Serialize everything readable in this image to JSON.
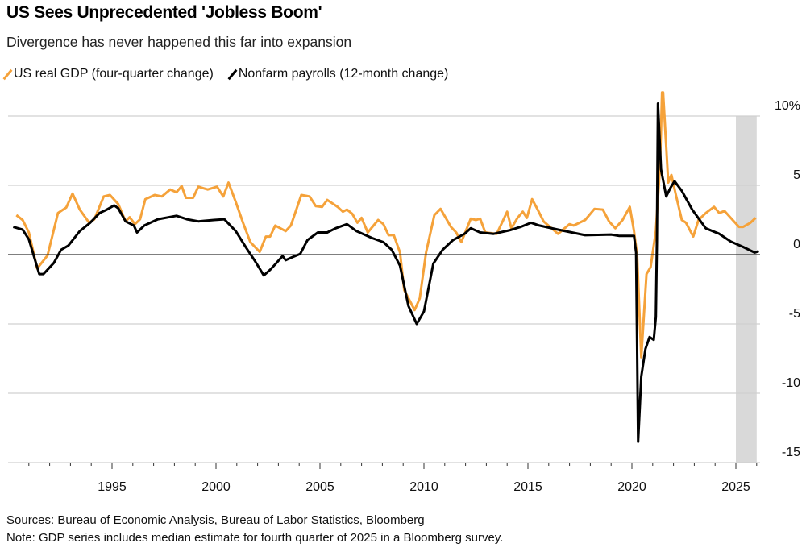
{
  "title": "US Sees Unprecedented 'Jobless Boom'",
  "subtitle": "Divergence has never happened this far into expansion",
  "footer": {
    "sources": "Sources: Bureau of Economic Analysis, Bureau of Labor Statistics, Bloomberg",
    "note": "Note: GDP series includes median estimate for fourth quarter of 2025 in a Bloomberg survey."
  },
  "chart_data": {
    "type": "line",
    "title": "US Sees Unprecedented 'Jobless Boom'",
    "xlabel": "",
    "ylabel": "",
    "xlim": [
      1990,
      2026.25
    ],
    "ylim": [
      -15,
      11
    ],
    "yticks": [
      {
        "v": 10,
        "label": "10%"
      },
      {
        "v": 5,
        "label": "5"
      },
      {
        "v": 0,
        "label": "0"
      },
      {
        "v": -5,
        "label": "-5"
      },
      {
        "v": -10,
        "label": "-10"
      },
      {
        "v": -15,
        "label": "-15"
      }
    ],
    "xticks": [
      {
        "v": 1995,
        "label": "1995"
      },
      {
        "v": 2000,
        "label": "2000"
      },
      {
        "v": 2005,
        "label": "2005"
      },
      {
        "v": 2010,
        "label": "2010"
      },
      {
        "v": 2015,
        "label": "2015"
      },
      {
        "v": 2020,
        "label": "2020"
      },
      {
        "v": 2025,
        "label": "2025"
      }
    ],
    "shaded_region": [
      2025,
      2026
    ],
    "grid": true,
    "legend_position": "top-left",
    "series": [
      {
        "name": "US real GDP (four-quarter change)",
        "color": "#f5a23a",
        "points": [
          [
            1990.4,
            2.85
          ],
          [
            1990.7,
            2.5
          ],
          [
            1991.0,
            1.6
          ],
          [
            1991.4,
            -1.0
          ],
          [
            1991.9,
            -0.05
          ],
          [
            1992.4,
            3.0
          ],
          [
            1992.8,
            3.4
          ],
          [
            1993.1,
            4.4
          ],
          [
            1993.45,
            3.25
          ],
          [
            1993.9,
            2.3
          ],
          [
            1994.15,
            2.55
          ],
          [
            1994.6,
            4.2
          ],
          [
            1994.9,
            4.3
          ],
          [
            1995.3,
            3.65
          ],
          [
            1995.65,
            2.4
          ],
          [
            1995.85,
            2.7
          ],
          [
            1996.1,
            2.2
          ],
          [
            1996.35,
            2.55
          ],
          [
            1996.6,
            4.0
          ],
          [
            1997.05,
            4.3
          ],
          [
            1997.4,
            4.2
          ],
          [
            1997.8,
            4.7
          ],
          [
            1998.1,
            4.5
          ],
          [
            1998.35,
            4.95
          ],
          [
            1998.55,
            4.1
          ],
          [
            1998.9,
            4.1
          ],
          [
            1999.15,
            4.9
          ],
          [
            1999.6,
            4.7
          ],
          [
            2000.05,
            4.9
          ],
          [
            2000.35,
            4.2
          ],
          [
            2000.6,
            5.2
          ],
          [
            2000.95,
            3.8
          ],
          [
            2001.3,
            2.3
          ],
          [
            2001.65,
            0.9
          ],
          [
            2002.1,
            0.2
          ],
          [
            2002.4,
            1.3
          ],
          [
            2002.6,
            1.3
          ],
          [
            2002.85,
            2.1
          ],
          [
            2003.35,
            1.7
          ],
          [
            2003.6,
            2.1
          ],
          [
            2004.1,
            4.3
          ],
          [
            2004.5,
            4.2
          ],
          [
            2004.8,
            3.5
          ],
          [
            2005.1,
            3.45
          ],
          [
            2005.35,
            3.95
          ],
          [
            2005.85,
            3.45
          ],
          [
            2006.1,
            3.1
          ],
          [
            2006.3,
            3.25
          ],
          [
            2006.55,
            2.95
          ],
          [
            2006.8,
            2.3
          ],
          [
            2007.0,
            2.65
          ],
          [
            2007.3,
            1.6
          ],
          [
            2007.8,
            2.5
          ],
          [
            2008.05,
            2.2
          ],
          [
            2008.3,
            1.4
          ],
          [
            2008.55,
            1.4
          ],
          [
            2008.85,
            0.15
          ],
          [
            2009.05,
            -2.55
          ],
          [
            2009.55,
            -4.0
          ],
          [
            2009.8,
            -3.15
          ],
          [
            2010.1,
            0.15
          ],
          [
            2010.5,
            2.85
          ],
          [
            2010.8,
            3.3
          ],
          [
            2011.3,
            2.0
          ],
          [
            2011.55,
            1.6
          ],
          [
            2011.8,
            0.9
          ],
          [
            2012.25,
            2.6
          ],
          [
            2012.5,
            2.5
          ],
          [
            2012.7,
            2.6
          ],
          [
            2012.95,
            1.6
          ],
          [
            2013.5,
            1.5
          ],
          [
            2014.0,
            3.1
          ],
          [
            2014.2,
            1.9
          ],
          [
            2014.5,
            2.65
          ],
          [
            2014.75,
            3.1
          ],
          [
            2014.95,
            2.65
          ],
          [
            2015.2,
            4.0
          ],
          [
            2015.45,
            3.3
          ],
          [
            2015.75,
            2.4
          ],
          [
            2016.45,
            1.5
          ],
          [
            2017.0,
            2.2
          ],
          [
            2017.2,
            2.1
          ],
          [
            2017.75,
            2.5
          ],
          [
            2018.2,
            3.3
          ],
          [
            2018.6,
            3.25
          ],
          [
            2018.9,
            2.4
          ],
          [
            2019.2,
            1.9
          ],
          [
            2019.55,
            2.5
          ],
          [
            2019.9,
            3.45
          ],
          [
            2020.1,
            1.7
          ],
          [
            2020.25,
            -0.05
          ],
          [
            2020.45,
            -7.4
          ],
          [
            2020.7,
            -1.4
          ],
          [
            2020.9,
            -0.9
          ],
          [
            2021.15,
            1.7
          ],
          [
            2021.35,
            6.3
          ],
          [
            2021.45,
            11.7
          ],
          [
            2021.5,
            11.7
          ],
          [
            2021.75,
            5.2
          ],
          [
            2021.9,
            5.75
          ],
          [
            2022.1,
            4.4
          ],
          [
            2022.4,
            2.5
          ],
          [
            2022.6,
            2.3
          ],
          [
            2022.95,
            1.3
          ],
          [
            2023.2,
            2.5
          ],
          [
            2023.55,
            3.0
          ],
          [
            2023.95,
            3.45
          ],
          [
            2024.2,
            3.0
          ],
          [
            2024.45,
            3.15
          ],
          [
            2024.75,
            2.65
          ],
          [
            2025.15,
            2.0
          ],
          [
            2025.35,
            2.0
          ],
          [
            2025.7,
            2.3
          ],
          [
            2025.95,
            2.65
          ]
        ]
      },
      {
        "name": "Nonfarm payrolls (12-month change)",
        "color": "#000000",
        "points": [
          [
            1990.25,
            2.0
          ],
          [
            1990.7,
            1.8
          ],
          [
            1991.0,
            1.1
          ],
          [
            1991.5,
            -1.4
          ],
          [
            1991.7,
            -1.4
          ],
          [
            1992.2,
            -0.6
          ],
          [
            1992.55,
            0.35
          ],
          [
            1992.9,
            0.65
          ],
          [
            1993.45,
            1.7
          ],
          [
            1993.95,
            2.3
          ],
          [
            1994.4,
            3.0
          ],
          [
            1994.75,
            3.25
          ],
          [
            1995.1,
            3.55
          ],
          [
            1995.3,
            3.35
          ],
          [
            1995.65,
            2.4
          ],
          [
            1996.05,
            2.1
          ],
          [
            1996.2,
            1.6
          ],
          [
            1996.55,
            2.1
          ],
          [
            1997.2,
            2.55
          ],
          [
            1998.1,
            2.8
          ],
          [
            1998.6,
            2.55
          ],
          [
            1999.15,
            2.4
          ],
          [
            1999.9,
            2.5
          ],
          [
            2000.4,
            2.55
          ],
          [
            2000.95,
            1.7
          ],
          [
            2001.45,
            0.5
          ],
          [
            2001.85,
            -0.4
          ],
          [
            2002.3,
            -1.5
          ],
          [
            2002.6,
            -1.1
          ],
          [
            2002.85,
            -0.7
          ],
          [
            2003.2,
            -0.1
          ],
          [
            2003.35,
            -0.4
          ],
          [
            2003.65,
            -0.2
          ],
          [
            2004.05,
            0.05
          ],
          [
            2004.4,
            1.05
          ],
          [
            2004.9,
            1.6
          ],
          [
            2005.35,
            1.6
          ],
          [
            2005.75,
            1.9
          ],
          [
            2006.3,
            2.2
          ],
          [
            2006.75,
            1.7
          ],
          [
            2007.5,
            1.2
          ],
          [
            2008.05,
            0.9
          ],
          [
            2008.45,
            0.35
          ],
          [
            2008.85,
            -0.8
          ],
          [
            2009.25,
            -3.7
          ],
          [
            2009.65,
            -5.0
          ],
          [
            2010.0,
            -4.1
          ],
          [
            2010.45,
            -0.65
          ],
          [
            2010.9,
            0.35
          ],
          [
            2011.4,
            1.05
          ],
          [
            2011.95,
            1.5
          ],
          [
            2012.25,
            1.9
          ],
          [
            2012.7,
            1.6
          ],
          [
            2013.35,
            1.5
          ],
          [
            2014.1,
            1.75
          ],
          [
            2014.65,
            2.0
          ],
          [
            2015.15,
            2.3
          ],
          [
            2015.55,
            2.1
          ],
          [
            2016.45,
            1.8
          ],
          [
            2017.75,
            1.4
          ],
          [
            2019.0,
            1.45
          ],
          [
            2019.4,
            1.35
          ],
          [
            2020.1,
            1.35
          ],
          [
            2020.2,
            0.15
          ],
          [
            2020.3,
            -13.5
          ],
          [
            2020.45,
            -8.8
          ],
          [
            2020.65,
            -6.8
          ],
          [
            2020.85,
            -5.95
          ],
          [
            2021.05,
            -6.15
          ],
          [
            2021.15,
            -4.5
          ],
          [
            2021.2,
            0.9
          ],
          [
            2021.25,
            10.9
          ],
          [
            2021.4,
            6.15
          ],
          [
            2021.65,
            4.2
          ],
          [
            2021.85,
            4.8
          ],
          [
            2022.05,
            5.3
          ],
          [
            2022.4,
            4.6
          ],
          [
            2022.9,
            3.25
          ],
          [
            2023.55,
            1.9
          ],
          [
            2024.2,
            1.5
          ],
          [
            2024.75,
            0.95
          ],
          [
            2025.35,
            0.55
          ],
          [
            2025.9,
            0.15
          ],
          [
            2026.1,
            0.25
          ]
        ]
      }
    ]
  }
}
